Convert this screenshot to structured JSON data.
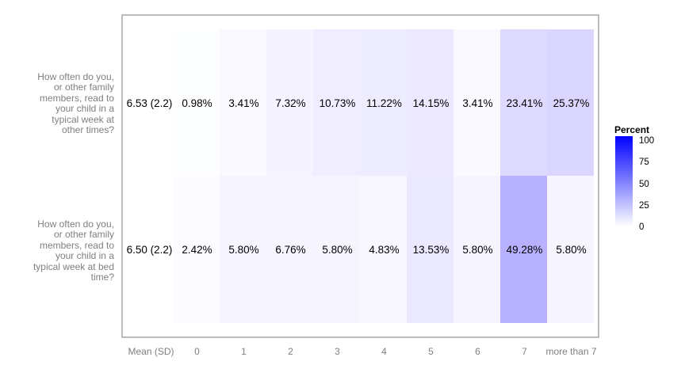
{
  "chart_data": {
    "type": "heatmap",
    "columns": [
      "Mean (SD)",
      "0",
      "1",
      "2",
      "3",
      "4",
      "5",
      "6",
      "7",
      "more than 7"
    ],
    "rows": [
      {
        "label": "How often do you, or other family members, read to your child in a typical week at other times?",
        "label_lines": [
          "How often do you,",
          "or other family",
          "members, read to",
          "your child in a",
          "typical week at",
          "other times?"
        ],
        "mean_sd": "6.53 (2.2)",
        "values": [
          0.98,
          3.41,
          7.32,
          10.73,
          11.22,
          14.15,
          3.41,
          23.41,
          25.37
        ],
        "value_labels": [
          "0.98%",
          "3.41%",
          "7.32%",
          "10.73%",
          "11.22%",
          "14.15%",
          "3.41%",
          "23.41%",
          "25.37%"
        ]
      },
      {
        "label": "How often do you, or other family members, read to your child in a typical week at bed time?",
        "label_lines": [
          "How often do you,",
          "or other family",
          "members, read to",
          "your child in a",
          "typical week at bed",
          "time?"
        ],
        "mean_sd": "6.50 (2.2)",
        "values": [
          2.42,
          5.8,
          6.76,
          5.8,
          4.83,
          13.53,
          5.8,
          49.28,
          5.8
        ],
        "value_labels": [
          "2.42%",
          "5.80%",
          "6.76%",
          "5.80%",
          "4.83%",
          "13.53%",
          "5.80%",
          "49.28%",
          "5.80%"
        ]
      }
    ],
    "color_scale": {
      "low": "#ffffff",
      "high": "#0000ff",
      "range": [
        0,
        100
      ]
    },
    "legend": {
      "title": "Percent",
      "ticks": [
        "100",
        "75",
        "50",
        "25",
        "0"
      ],
      "placement": "right"
    }
  }
}
